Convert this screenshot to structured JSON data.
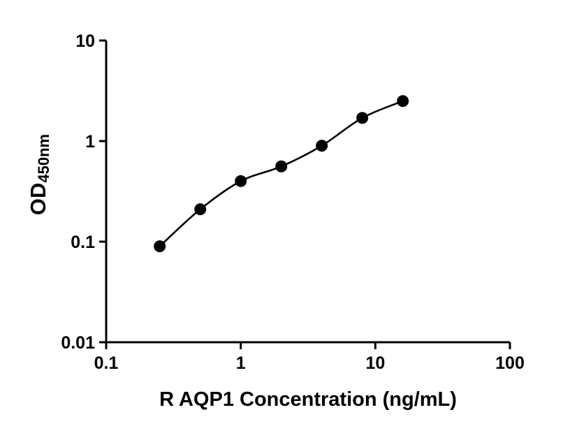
{
  "chart_data": {
    "type": "scatter",
    "xlabel": "R AQP1 Concentration (ng/mL)",
    "ylabel_main": "OD",
    "ylabel_sub": "450nm",
    "x_scale": "log",
    "y_scale": "log",
    "xlim": [
      0.1,
      100
    ],
    "ylim": [
      0.01,
      10
    ],
    "x_ticks": [
      0.1,
      1,
      10,
      100
    ],
    "x_tick_labels": [
      "0.1",
      "1",
      "10",
      "100"
    ],
    "y_ticks": [
      0.01,
      0.1,
      1,
      10
    ],
    "y_tick_labels": [
      "0.01",
      "0.1",
      "1",
      "10"
    ],
    "grid": false,
    "legend": false,
    "series": [
      {
        "x": [
          0.25,
          0.5,
          1,
          2,
          4,
          8,
          16
        ],
        "y": [
          0.09,
          0.21,
          0.4,
          0.56,
          0.9,
          1.7,
          2.5
        ],
        "marker": "circle",
        "marker_color": "#000000",
        "line_color": "#000000"
      }
    ]
  }
}
